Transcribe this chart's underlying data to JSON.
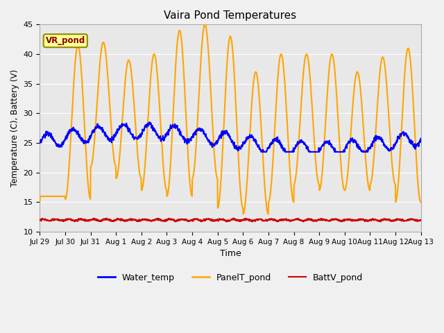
{
  "title": "Vaira Pond Temperatures",
  "xlabel": "Time",
  "ylabel": "Temperature (C), Battery (V)",
  "ylim": [
    10,
    45
  ],
  "yticks": [
    10,
    15,
    20,
    25,
    30,
    35,
    40,
    45
  ],
  "fig_facecolor": "#f0f0f0",
  "ax_facecolor": "#e8e8e8",
  "legend_labels": [
    "Water_temp",
    "PanelT_pond",
    "BattV_pond"
  ],
  "water_temp_color": "#0000ff",
  "panel_temp_color": "#ffa500",
  "batt_color": "#cc0000",
  "water_temp_lw": 1.5,
  "panel_temp_lw": 1.5,
  "batt_lw": 1.5,
  "grid_color": "#ffffff",
  "annotation_text": "VR_pond",
  "annotation_color": "#8b0000",
  "annotation_bg": "#ffff99",
  "annotation_border": "#8b8b00",
  "xtick_labels": [
    "Jul 29",
    "Jul 30",
    "Jul 31",
    "Aug 1",
    "Aug 2",
    "Aug 3",
    "Aug 4",
    "Aug 5",
    "Aug 6",
    "Aug 7",
    "Aug 8",
    "Aug 9",
    "Aug 10",
    "Aug 11",
    "Aug 12",
    "Aug 13"
  ],
  "num_points": 1440,
  "panel_peaks": [
    16,
    41.5,
    42,
    39,
    40,
    44,
    45,
    43,
    37,
    40,
    40,
    40,
    37,
    39.5,
    41,
    41
  ],
  "panel_troughs": [
    16,
    15.5,
    21,
    19,
    17,
    16,
    19,
    14,
    13,
    15,
    18,
    17,
    17,
    18,
    15,
    15
  ],
  "water_base": 26,
  "batt_base": 12.0
}
